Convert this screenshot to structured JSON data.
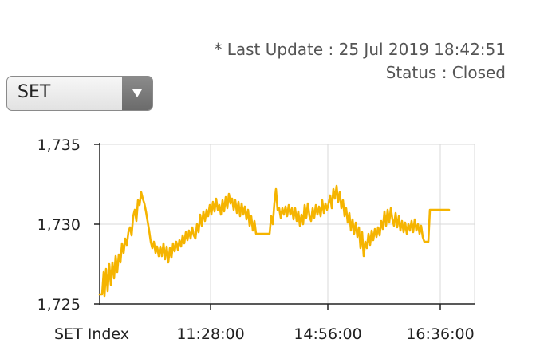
{
  "header": {
    "last_update": "* Last Update : 25 Jul 2019 18:42:51",
    "status": "Status : Closed"
  },
  "selector": {
    "selected": "SET",
    "arrow_icon": "triangle-down-icon"
  },
  "chart_data": {
    "type": "line",
    "series": [
      {
        "values": [
          [
            0,
            1725.6
          ],
          [
            3,
            1725.6
          ],
          [
            5,
            1727.0
          ],
          [
            6,
            1725.5
          ],
          [
            8,
            1727.2
          ],
          [
            10,
            1725.8
          ],
          [
            12,
            1727.5
          ],
          [
            14,
            1726.2
          ],
          [
            16,
            1727.6
          ],
          [
            18,
            1726.6
          ],
          [
            20,
            1728.0
          ],
          [
            22,
            1727.0
          ],
          [
            24,
            1728.1
          ],
          [
            26,
            1727.6
          ],
          [
            28,
            1728.8
          ],
          [
            30,
            1728.2
          ],
          [
            32,
            1729.1
          ],
          [
            34,
            1728.7
          ],
          [
            36,
            1729.5
          ],
          [
            38,
            1729.8
          ],
          [
            40,
            1729.3
          ],
          [
            42,
            1730.5
          ],
          [
            44,
            1730.9
          ],
          [
            46,
            1730.2
          ],
          [
            48,
            1731.5
          ],
          [
            50,
            1731.2
          ],
          [
            52,
            1732.0
          ],
          [
            54,
            1731.6
          ],
          [
            56,
            1731.3
          ],
          [
            58,
            1730.8
          ],
          [
            60,
            1730.2
          ],
          [
            62,
            1729.6
          ],
          [
            64,
            1728.9
          ],
          [
            66,
            1728.5
          ],
          [
            68,
            1728.9
          ],
          [
            70,
            1728.2
          ],
          [
            72,
            1728.6
          ],
          [
            74,
            1728.0
          ],
          [
            76,
            1728.6
          ],
          [
            78,
            1728.0
          ],
          [
            80,
            1728.8
          ],
          [
            82,
            1727.8
          ],
          [
            84,
            1728.6
          ],
          [
            86,
            1727.6
          ],
          [
            88,
            1728.5
          ],
          [
            90,
            1727.9
          ],
          [
            92,
            1728.8
          ],
          [
            94,
            1728.3
          ],
          [
            96,
            1728.9
          ],
          [
            98,
            1728.4
          ],
          [
            100,
            1729.0
          ],
          [
            102,
            1728.6
          ],
          [
            104,
            1729.3
          ],
          [
            106,
            1728.8
          ],
          [
            108,
            1729.5
          ],
          [
            110,
            1729.0
          ],
          [
            112,
            1729.6
          ],
          [
            114,
            1729.1
          ],
          [
            116,
            1729.8
          ],
          [
            118,
            1729.3
          ],
          [
            120,
            1729.1
          ],
          [
            122,
            1730.0
          ],
          [
            124,
            1729.5
          ],
          [
            126,
            1730.6
          ],
          [
            128,
            1729.9
          ],
          [
            130,
            1730.8
          ],
          [
            132,
            1730.2
          ],
          [
            134,
            1730.9
          ],
          [
            136,
            1730.5
          ],
          [
            138,
            1731.2
          ],
          [
            140,
            1730.6
          ],
          [
            142,
            1731.4
          ],
          [
            144,
            1730.8
          ],
          [
            146,
            1731.6
          ],
          [
            148,
            1730.9
          ],
          [
            150,
            1731.2
          ],
          [
            152,
            1730.6
          ],
          [
            154,
            1731.5
          ],
          [
            156,
            1730.8
          ],
          [
            158,
            1731.7
          ],
          [
            160,
            1731.0
          ],
          [
            162,
            1731.9
          ],
          [
            164,
            1731.3
          ],
          [
            166,
            1731.6
          ],
          [
            168,
            1730.9
          ],
          [
            170,
            1731.5
          ],
          [
            172,
            1730.7
          ],
          [
            174,
            1731.4
          ],
          [
            176,
            1730.5
          ],
          [
            178,
            1731.3
          ],
          [
            180,
            1730.6
          ],
          [
            182,
            1731.1
          ],
          [
            184,
            1730.3
          ],
          [
            186,
            1730.9
          ],
          [
            188,
            1729.9
          ],
          [
            190,
            1730.5
          ],
          [
            192,
            1729.6
          ],
          [
            194,
            1730.2
          ],
          [
            196,
            1729.4
          ],
          [
            200,
            1729.4
          ],
          [
            205,
            1729.4
          ],
          [
            210,
            1729.4
          ],
          [
            213,
            1729.4
          ],
          [
            215,
            1730.5
          ],
          [
            217,
            1730.0
          ],
          [
            219,
            1731.3
          ],
          [
            221,
            1732.2
          ],
          [
            223,
            1730.9
          ],
          [
            225,
            1731.0
          ],
          [
            227,
            1730.4
          ],
          [
            229,
            1731.0
          ],
          [
            231,
            1730.6
          ],
          [
            233,
            1731.1
          ],
          [
            235,
            1730.5
          ],
          [
            237,
            1731.2
          ],
          [
            239,
            1730.6
          ],
          [
            241,
            1731.0
          ],
          [
            243,
            1730.3
          ],
          [
            245,
            1731.0
          ],
          [
            247,
            1730.2
          ],
          [
            249,
            1730.8
          ],
          [
            251,
            1729.9
          ],
          [
            253,
            1730.6
          ],
          [
            255,
            1730.0
          ],
          [
            257,
            1731.2
          ],
          [
            259,
            1730.4
          ],
          [
            261,
            1731.3
          ],
          [
            263,
            1730.5
          ],
          [
            265,
            1730.2
          ],
          [
            267,
            1731.0
          ],
          [
            269,
            1730.4
          ],
          [
            271,
            1731.2
          ],
          [
            273,
            1730.6
          ],
          [
            275,
            1731.1
          ],
          [
            277,
            1730.5
          ],
          [
            279,
            1731.5
          ],
          [
            281,
            1730.7
          ],
          [
            283,
            1731.3
          ],
          [
            285,
            1730.9
          ],
          [
            287,
            1731.3
          ],
          [
            289,
            1731.8
          ],
          [
            291,
            1731.0
          ],
          [
            293,
            1732.2
          ],
          [
            295,
            1731.6
          ],
          [
            297,
            1732.4
          ],
          [
            299,
            1731.4
          ],
          [
            301,
            1732.0
          ],
          [
            303,
            1731.0
          ],
          [
            305,
            1731.5
          ],
          [
            307,
            1730.5
          ],
          [
            309,
            1731.0
          ],
          [
            311,
            1730.1
          ],
          [
            313,
            1730.7
          ],
          [
            315,
            1729.6
          ],
          [
            317,
            1730.3
          ],
          [
            319,
            1729.4
          ],
          [
            321,
            1730.1
          ],
          [
            323,
            1729.2
          ],
          [
            325,
            1729.8
          ],
          [
            327,
            1728.5
          ],
          [
            329,
            1729.5
          ],
          [
            331,
            1728.0
          ],
          [
            333,
            1728.9
          ],
          [
            335,
            1728.5
          ],
          [
            337,
            1729.4
          ],
          [
            339,
            1728.7
          ],
          [
            341,
            1729.6
          ],
          [
            343,
            1729.0
          ],
          [
            345,
            1729.7
          ],
          [
            347,
            1729.2
          ],
          [
            349,
            1729.8
          ],
          [
            351,
            1729.3
          ],
          [
            353,
            1730.2
          ],
          [
            355,
            1729.7
          ],
          [
            357,
            1730.8
          ],
          [
            359,
            1729.9
          ],
          [
            361,
            1730.9
          ],
          [
            363,
            1730.1
          ],
          [
            365,
            1731.0
          ],
          [
            367,
            1730.3
          ],
          [
            369,
            1729.9
          ],
          [
            371,
            1730.7
          ],
          [
            373,
            1729.8
          ],
          [
            375,
            1730.5
          ],
          [
            377,
            1729.6
          ],
          [
            379,
            1730.2
          ],
          [
            381,
            1729.5
          ],
          [
            383,
            1730.1
          ],
          [
            385,
            1729.4
          ],
          [
            387,
            1730.0
          ],
          [
            389,
            1729.6
          ],
          [
            391,
            1730.2
          ],
          [
            393,
            1729.5
          ],
          [
            395,
            1730.3
          ],
          [
            397,
            1729.6
          ],
          [
            399,
            1730.0
          ],
          [
            401,
            1729.4
          ],
          [
            403,
            1729.9
          ],
          [
            405,
            1729.2
          ],
          [
            407,
            1728.9
          ],
          [
            409,
            1728.9
          ],
          [
            412,
            1728.9
          ],
          [
            414,
            1730.9
          ],
          [
            420,
            1730.9
          ],
          [
            430,
            1730.9
          ],
          [
            438,
            1730.9
          ]
        ]
      }
    ],
    "x_tick_labels": [
      "SET Index",
      "11:28:00",
      "14:56:00",
      "16:36:00"
    ],
    "x_tick_positions": [
      0,
      139,
      286,
      427
    ],
    "y_ticks": [
      "1,735",
      "1,730",
      "1,725"
    ],
    "y_tick_values": [
      1735,
      1730,
      1725
    ],
    "xlim": [
      0,
      470
    ],
    "ylim": [
      1725,
      1735
    ],
    "grid": true,
    "line_color": "#F5B400",
    "grid_color": "#d8d8d8"
  }
}
